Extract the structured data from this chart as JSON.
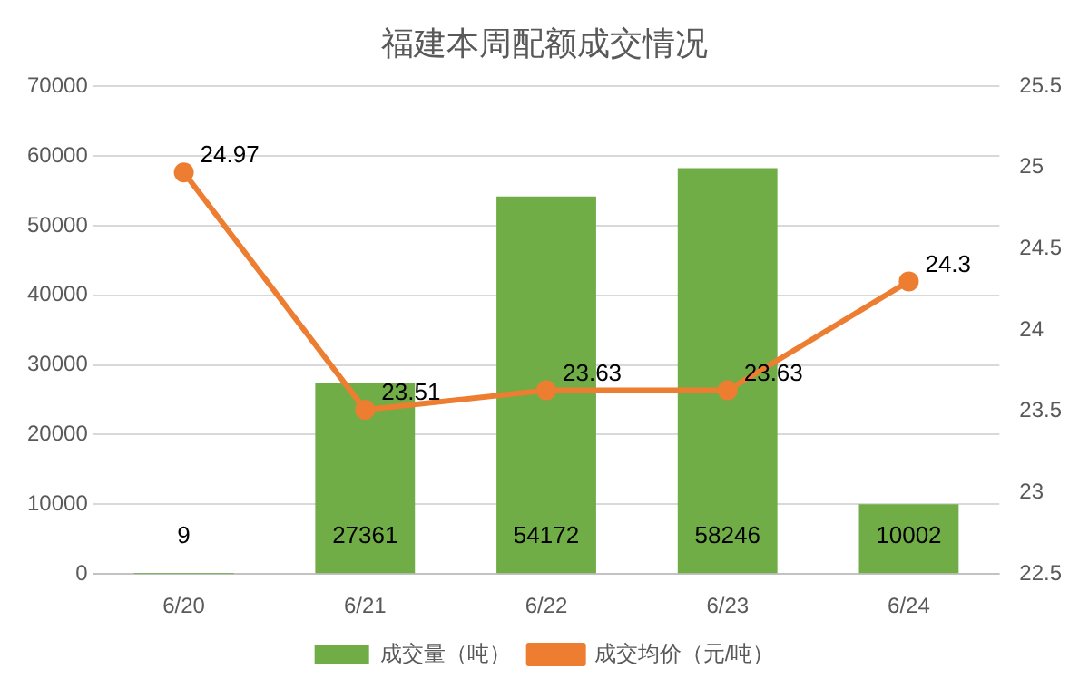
{
  "chart_data": {
    "type": "bar",
    "title": "福建本周配额成交情况",
    "categories": [
      "6/20",
      "6/21",
      "6/22",
      "6/23",
      "6/24"
    ],
    "series": [
      {
        "name": "成交量（吨）",
        "color": "#70ad47",
        "values": [
          9,
          27361,
          54172,
          58246,
          10002
        ]
      },
      {
        "name": "成交均价（元/吨）",
        "type": "line",
        "axis": "y2",
        "color": "#ed7d31",
        "values": [
          24.97,
          23.51,
          23.63,
          23.63,
          24.3
        ]
      }
    ],
    "ylim": [
      0,
      70000
    ],
    "yticks": [
      0,
      10000,
      20000,
      30000,
      40000,
      50000,
      60000,
      70000
    ],
    "y2lim": [
      22.5,
      25.5
    ],
    "y2ticks": [
      22.5,
      23,
      23.5,
      24,
      24.5,
      25,
      25.5
    ],
    "grid": "y",
    "legend": "bottom",
    "marker": "circle",
    "line_style": "solid",
    "data_labels": true
  }
}
